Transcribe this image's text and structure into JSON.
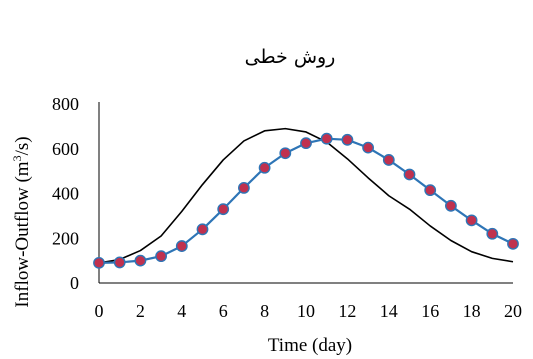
{
  "chart_data": {
    "type": "line",
    "title": "روش خطی",
    "xlabel": "Time (day)",
    "ylabel_prefix": "Inflow-Outflow (m",
    "ylabel_sup": "3",
    "ylabel_suffix": "/s)",
    "xlim": [
      0,
      20
    ],
    "ylim": [
      0,
      800
    ],
    "xticks": [
      0,
      2,
      4,
      6,
      8,
      10,
      12,
      14,
      16,
      18,
      20
    ],
    "yticks": [
      0,
      200,
      400,
      600,
      800
    ],
    "grid": false,
    "legend": "none",
    "series": [
      {
        "style": "line",
        "color": "#000000",
        "x": [
          0,
          1,
          2,
          3,
          4,
          5,
          6,
          7,
          8,
          9,
          10,
          11,
          12,
          13,
          14,
          15,
          16,
          17,
          18,
          19,
          20
        ],
        "values": [
          90,
          105,
          145,
          210,
          320,
          440,
          550,
          635,
          680,
          690,
          675,
          630,
          555,
          470,
          390,
          330,
          255,
          190,
          140,
          110,
          95
        ]
      },
      {
        "style": "line-markers",
        "color": "#2e75b6",
        "marker_color": "#c0314f",
        "x": [
          0,
          1,
          2,
          3,
          4,
          5,
          6,
          7,
          8,
          9,
          10,
          11,
          12,
          13,
          14,
          15,
          16,
          17,
          18,
          19,
          20
        ],
        "values": [
          90,
          92,
          100,
          120,
          165,
          240,
          330,
          425,
          515,
          580,
          625,
          645,
          640,
          605,
          550,
          485,
          415,
          345,
          280,
          220,
          175
        ]
      }
    ]
  }
}
